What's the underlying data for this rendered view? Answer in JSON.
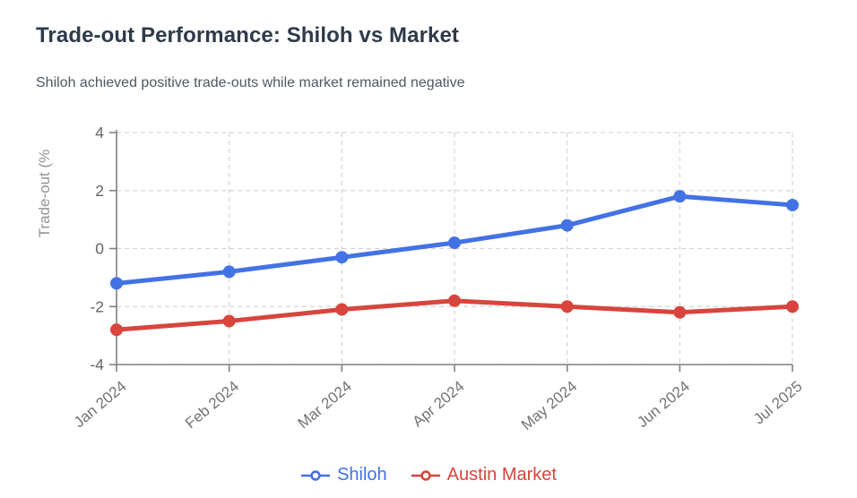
{
  "header": {
    "title": "Trade-out Performance: Shiloh vs Market",
    "subtitle": "Shiloh achieved positive trade-outs while market remained negative"
  },
  "chart_data": {
    "type": "line",
    "categories": [
      "Jan 2024",
      "Feb 2024",
      "Mar 2024",
      "Apr 2024",
      "May 2024",
      "Jun 2024",
      "Jul 2025"
    ],
    "series": [
      {
        "name": "Shiloh",
        "color": "#4372e4",
        "values": [
          -1.2,
          -0.8,
          -0.3,
          0.2,
          0.8,
          1.8,
          1.5
        ]
      },
      {
        "name": "Austin Market",
        "color": "#d7453d",
        "values": [
          -2.8,
          -2.5,
          -2.1,
          -1.8,
          -2.0,
          -2.2,
          -2.0
        ]
      }
    ],
    "title": "",
    "xlabel": "",
    "ylabel": "Trade-out (%",
    "ylim": [
      -4,
      4
    ],
    "yticks": [
      4,
      2,
      0,
      -2,
      -4
    ],
    "grid": true,
    "grid_style": "dashed",
    "legend_position": "bottom",
    "marker": "circle",
    "axis_color": "#808080",
    "grid_color": "#d4d4d4",
    "tick_label_color": "#666666",
    "axis_title_color": "#949494"
  }
}
